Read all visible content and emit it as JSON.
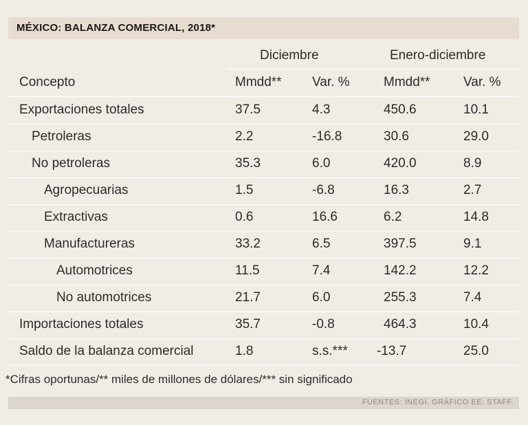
{
  "title": "MÉXICO: BALANZA COMERCIAL, 2018*",
  "group_headers": {
    "december": "Diciembre",
    "year": "Enero-diciembre"
  },
  "columns": [
    "Concepto",
    "Mmdd**",
    "Var. %",
    "Mmdd**",
    "Var. %"
  ],
  "rows": [
    {
      "concepto": "Exportaciones totales",
      "dic_mmdd": "37.5",
      "dic_var": "4.3",
      "ene_mmdd": "450.6",
      "ene_var": "10.1"
    },
    {
      "concepto": "Petroleras",
      "dic_mmdd": "2.2",
      "dic_var": "-16.8",
      "ene_mmdd": "30.6",
      "ene_var": "29.0"
    },
    {
      "concepto": "No petroleras",
      "dic_mmdd": "35.3",
      "dic_var": "6.0",
      "ene_mmdd": "420.0",
      "ene_var": "8.9"
    },
    {
      "concepto": "Agropecuarias",
      "dic_mmdd": "1.5",
      "dic_var": "-6.8",
      "ene_mmdd": "16.3",
      "ene_var": "2.7"
    },
    {
      "concepto": "Extractivas",
      "dic_mmdd": "0.6",
      "dic_var": "16.6",
      "ene_mmdd": "6.2",
      "ene_var": "14.8"
    },
    {
      "concepto": "Manufactureras",
      "dic_mmdd": "33.2",
      "dic_var": "6.5",
      "ene_mmdd": "397.5",
      "ene_var": "9.1"
    },
    {
      "concepto": "Automotrices",
      "dic_mmdd": "11.5",
      "dic_var": "7.4",
      "ene_mmdd": "142.2",
      "ene_var": "12.2"
    },
    {
      "concepto": "No automotrices",
      "dic_mmdd": "21.7",
      "dic_var": "6.0",
      "ene_mmdd": "255.3",
      "ene_var": "7.4"
    },
    {
      "concepto": "Importaciones totales",
      "dic_mmdd": "35.7",
      "dic_var": "-0.8",
      "ene_mmdd": "464.3",
      "ene_var": "10.4"
    },
    {
      "concepto": "Saldo de la balanza comercial",
      "dic_mmdd": "1.8",
      "dic_var": "s.s.***",
      "ene_mmdd": "-13.7",
      "ene_var": "25.0"
    }
  ],
  "footnote": "*Cifras oportunas/** miles de millones de dólares/*** sin significado",
  "source": "FUENTES: INEGI. GRÁFICO EE: STAFF."
}
